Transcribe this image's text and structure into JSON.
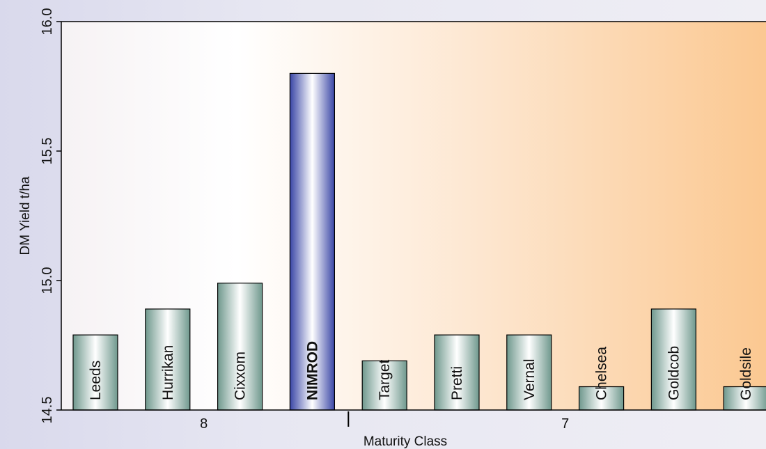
{
  "chart_data": {
    "type": "bar",
    "ylabel": "DM Yield t/ha",
    "xlabel": "Maturity Class",
    "ylim": [
      14.5,
      16.0
    ],
    "yticks": [
      "14.5",
      "15.0",
      "15.5",
      "16.0"
    ],
    "categories": [
      "Leeds",
      "Hurrikan",
      "Cixxom",
      "NIMROD",
      "Target",
      "Pretti",
      "Vernal",
      "Chelsea",
      "Goldcob",
      "Goldsile"
    ],
    "values": [
      14.79,
      14.89,
      14.99,
      15.8,
      14.69,
      14.79,
      14.79,
      14.59,
      14.89,
      14.59
    ],
    "highlight": "NIMROD",
    "groups": [
      {
        "label": "8",
        "count": 4
      },
      {
        "label": "7",
        "count": 6
      }
    ],
    "colors": {
      "bar_edge": "#7fa79c",
      "bar_center": "#ffffff",
      "highlight_edge": "#3c48a8",
      "highlight_center": "#ffffff",
      "plot_bg_start": "#ffffff",
      "plot_bg_end": "#fbc891"
    }
  }
}
